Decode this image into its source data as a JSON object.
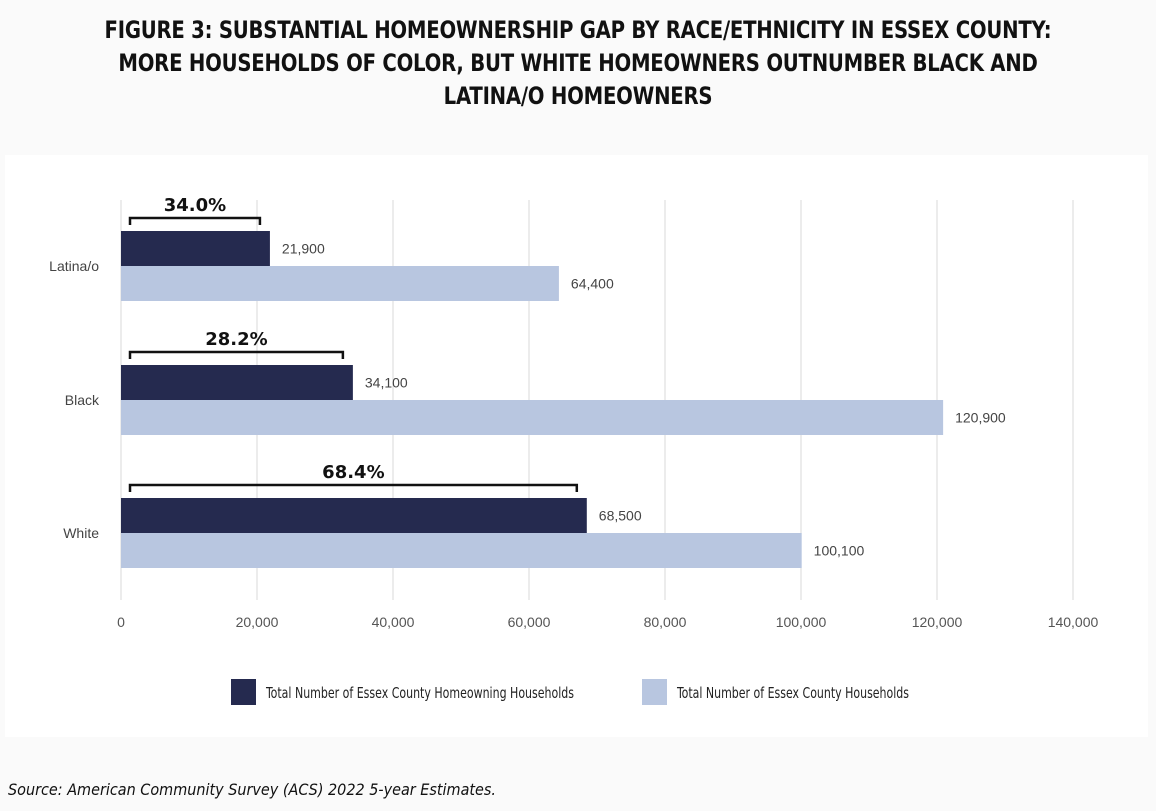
{
  "title_lines": [
    "FIGURE 3: SUBSTANTIAL HOMEOWNERSHIP GAP BY RACE/ETHNICITY IN ESSEX COUNTY:",
    "MORE HOUSEHOLDS OF COLOR, BUT WHITE HOMEOWNERS OUTNUMBER BLACK AND",
    "LATINA/O HOMEOWNERS"
  ],
  "source": "Source: American Community Survey (ACS) 2022 5-year Estimates.",
  "chart_data": {
    "type": "bar",
    "orientation": "horizontal",
    "title": "FIGURE 3: SUBSTANTIAL HOMEOWNERSHIP GAP BY RACE/ETHNICITY IN ESSEX COUNTY: MORE HOUSEHOLDS OF COLOR, BUT WHITE HOMEOWNERS OUTNUMBER BLACK AND LATINA/O HOMEOWNERS",
    "categories": [
      "Latina/o",
      "Black",
      "White"
    ],
    "series": [
      {
        "name": "Total Number of Essex County Homeowning Households",
        "color": "#252a4f",
        "values": [
          21900,
          34100,
          68500
        ],
        "labels": [
          "21,900",
          "34,100",
          "68,500"
        ]
      },
      {
        "name": "Total Number of Essex County Households",
        "color": "#b8c6e0",
        "values": [
          64400,
          120900,
          100100
        ],
        "labels": [
          "64,400",
          "120,900",
          "100,100"
        ]
      }
    ],
    "annotations": [
      {
        "category": "Latina/o",
        "text": "34.0%"
      },
      {
        "category": "Black",
        "text": "28.2%"
      },
      {
        "category": "White",
        "text": "68.4%"
      }
    ],
    "xlim": [
      0,
      140000
    ],
    "xticks": [
      0,
      20000,
      40000,
      60000,
      80000,
      100000,
      120000,
      140000
    ],
    "xtick_labels": [
      "0",
      "20,000",
      "40,000",
      "60,000",
      "80,000",
      "100,000",
      "120,000",
      "140,000"
    ],
    "xlabel": "",
    "ylabel": "",
    "grid": true,
    "legend_position": "bottom"
  }
}
